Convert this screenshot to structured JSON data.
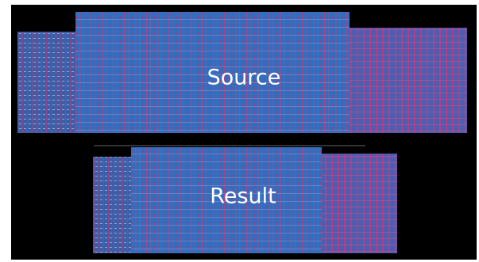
{
  "panels": [
    {
      "label": "Source"
    },
    {
      "label": "Result"
    }
  ]
}
